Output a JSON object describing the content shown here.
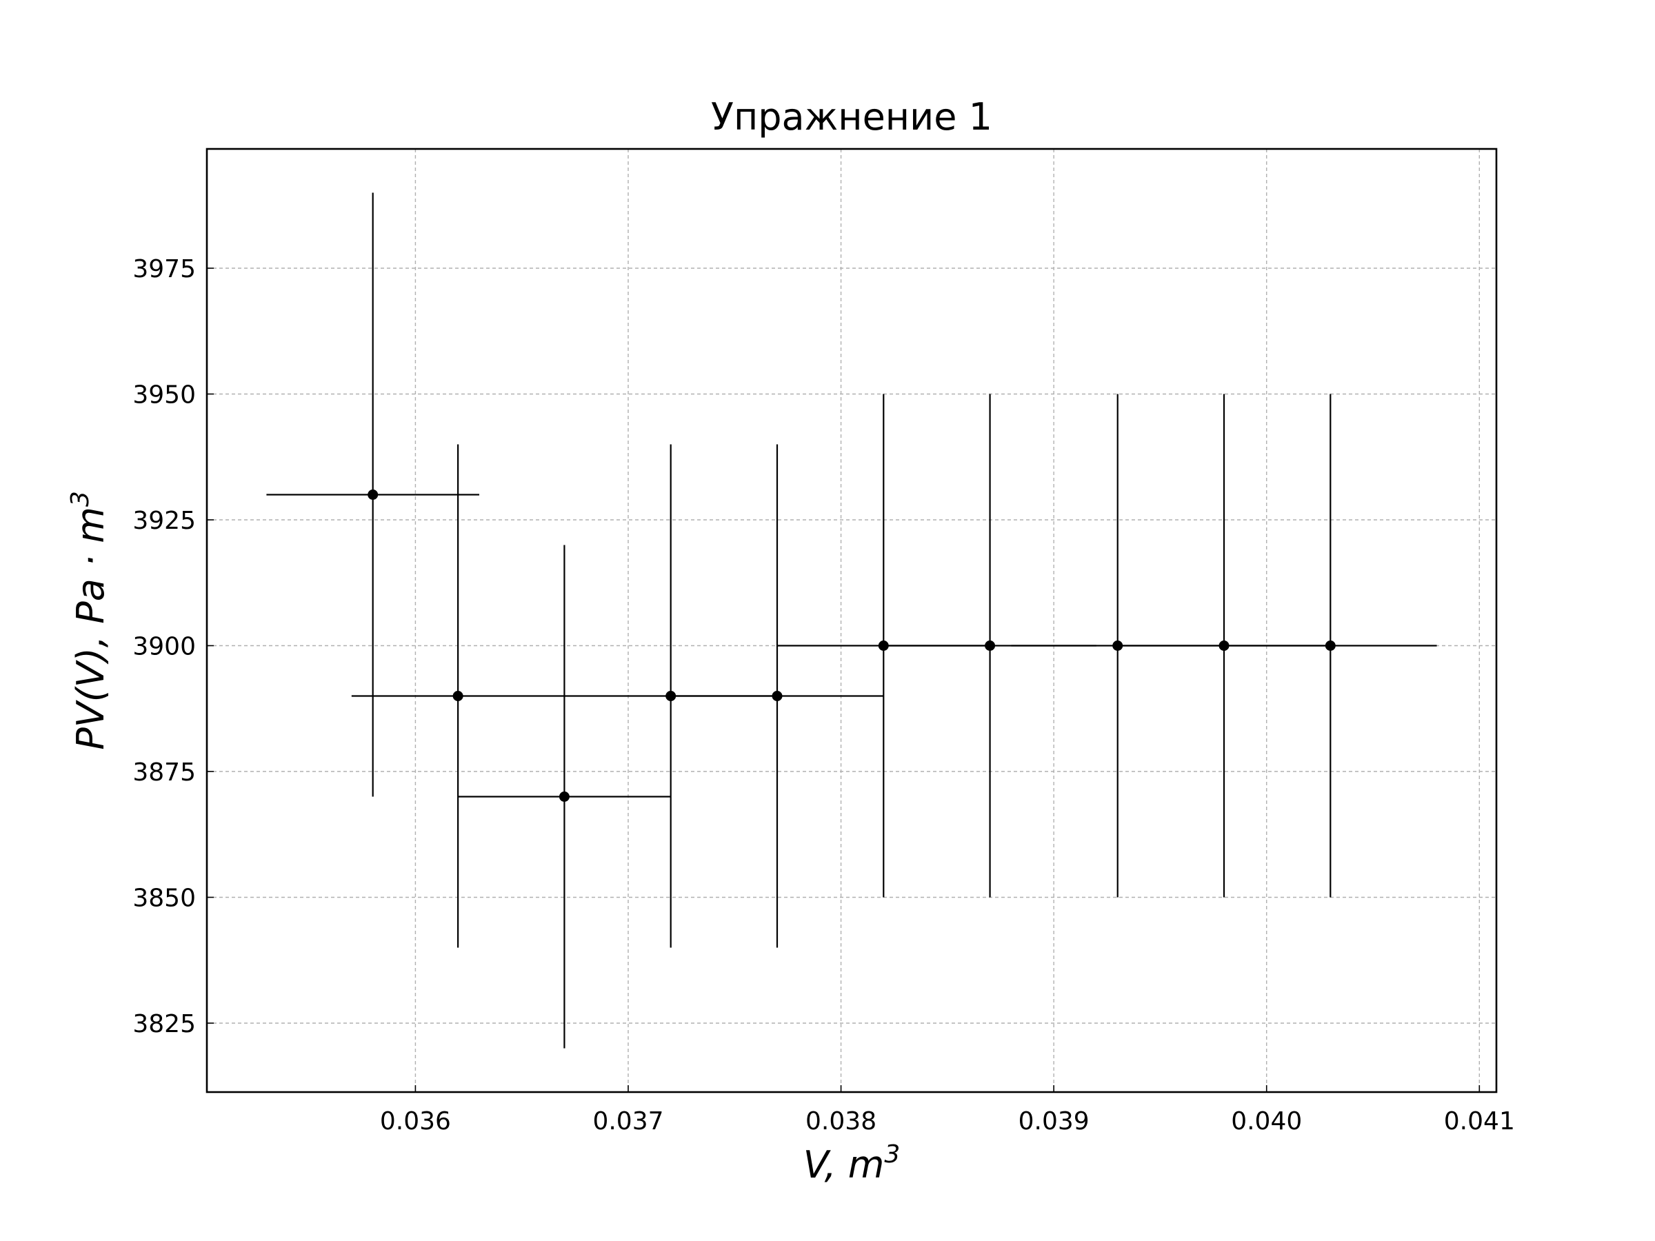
{
  "chart_data": {
    "type": "scatter",
    "title": "Упражнение 1",
    "xlabel": "V, m",
    "xlabel_sup": "3",
    "ylabel": "PV(V), Pa · m",
    "ylabel_sup": "3",
    "xlim": [
      0.03502,
      0.04108
    ],
    "ylim": [
      3811.3,
      3998.7
    ],
    "xticks": [
      0.036,
      0.037,
      0.038,
      0.039,
      0.04,
      0.041
    ],
    "xtick_labels": [
      "0.036",
      "0.037",
      "0.038",
      "0.039",
      "0.040",
      "0.041"
    ],
    "yticks": [
      3825,
      3850,
      3875,
      3900,
      3925,
      3950,
      3975
    ],
    "ytick_labels": [
      "3825",
      "3850",
      "3875",
      "3900",
      "3925",
      "3950",
      "3975"
    ],
    "grid": true,
    "points": [
      {
        "x": 0.0358,
        "y": 3930,
        "xerr": 0.0005,
        "yerr": 60
      },
      {
        "x": 0.0362,
        "y": 3890,
        "xerr": 0.0005,
        "yerr": 50
      },
      {
        "x": 0.0367,
        "y": 3870,
        "xerr": 0.0005,
        "yerr": 50
      },
      {
        "x": 0.0372,
        "y": 3890,
        "xerr": 0.0005,
        "yerr": 50
      },
      {
        "x": 0.0377,
        "y": 3890,
        "xerr": 0.0005,
        "yerr": 50
      },
      {
        "x": 0.0382,
        "y": 3900,
        "xerr": 0.0005,
        "yerr": 50
      },
      {
        "x": 0.0387,
        "y": 3900,
        "xerr": 0.0005,
        "yerr": 50
      },
      {
        "x": 0.0393,
        "y": 3900,
        "xerr": 0.0005,
        "yerr": 50
      },
      {
        "x": 0.0398,
        "y": 3900,
        "xerr": 0.0005,
        "yerr": 50
      },
      {
        "x": 0.0403,
        "y": 3900,
        "xerr": 0.0005,
        "yerr": 50
      }
    ]
  }
}
